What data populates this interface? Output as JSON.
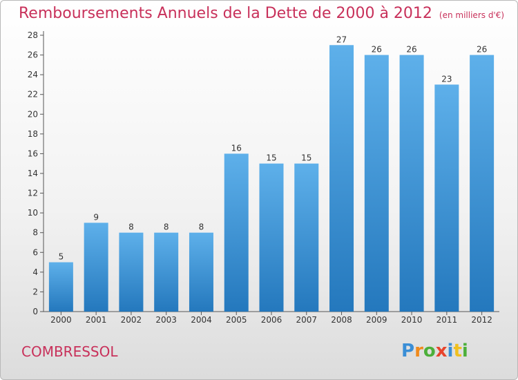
{
  "title": "Remboursements Annuels de la Dette de 2000 à 2012",
  "subtitle": "(en milliers d'€)",
  "commune": "COMBRESSOL",
  "logo_text": "Proxiti",
  "colors": {
    "title": "#c8305a",
    "bar_top": "#5eb0ea",
    "bar_bottom": "#2478bd"
  },
  "chart_data": {
    "type": "bar",
    "categories": [
      "2000",
      "2001",
      "2002",
      "2003",
      "2004",
      "2005",
      "2006",
      "2007",
      "2008",
      "2009",
      "2010",
      "2011",
      "2012"
    ],
    "values": [
      5,
      9,
      8,
      8,
      8,
      16,
      15,
      15,
      27,
      26,
      26,
      23,
      26
    ],
    "ylim": [
      0,
      28
    ],
    "yticks": [
      0,
      2,
      4,
      6,
      8,
      10,
      12,
      14,
      16,
      18,
      20,
      22,
      24,
      26,
      28
    ],
    "grid": false,
    "data_labels": true
  }
}
